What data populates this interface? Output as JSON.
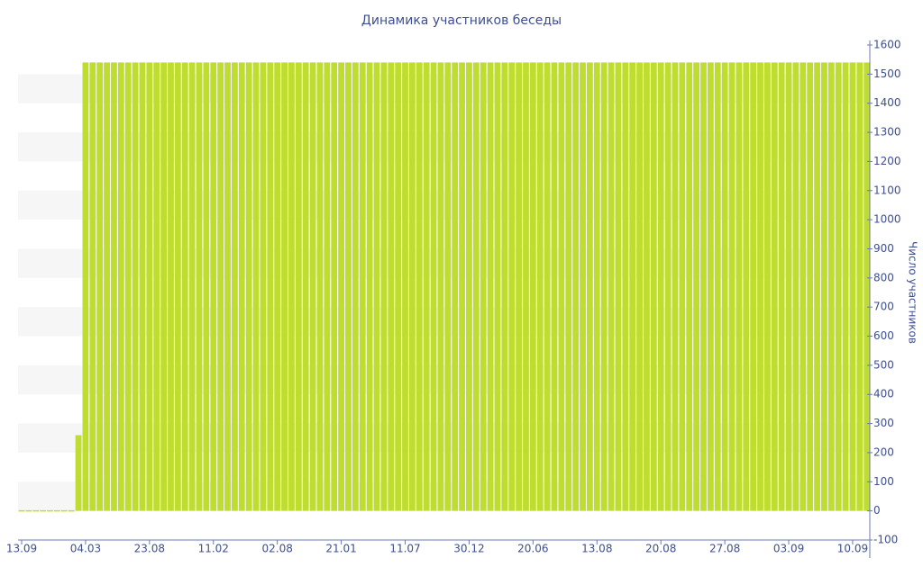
{
  "chart_data": {
    "type": "bar",
    "title": "Динамика участников беседы",
    "y_label": "Число участников",
    "color": "#bedd2f",
    "grid": true,
    "ylim": [
      -100,
      1600
    ],
    "yticks": [
      -100,
      0,
      100,
      200,
      300,
      400,
      500,
      600,
      700,
      800,
      900,
      1000,
      1100,
      1200,
      1300,
      1400,
      1500,
      1600
    ],
    "categories": [
      "13.09",
      null,
      null,
      null,
      null,
      null,
      null,
      null,
      null,
      "04.03",
      null,
      null,
      null,
      null,
      null,
      null,
      null,
      null,
      "23.08",
      null,
      null,
      null,
      null,
      null,
      null,
      null,
      null,
      "11.02",
      null,
      null,
      null,
      null,
      null,
      null,
      null,
      null,
      "02.08",
      null,
      null,
      null,
      null,
      null,
      null,
      null,
      null,
      "21.01",
      null,
      null,
      null,
      null,
      null,
      null,
      null,
      null,
      "11.07",
      null,
      null,
      null,
      null,
      null,
      null,
      null,
      null,
      "30.12",
      null,
      null,
      null,
      null,
      null,
      null,
      null,
      null,
      "20.06",
      null,
      null,
      null,
      null,
      null,
      null,
      null,
      null,
      "13.08",
      null,
      null,
      null,
      null,
      null,
      null,
      null,
      null,
      "20.08",
      null,
      null,
      null,
      null,
      null,
      null,
      null,
      null,
      "27.08",
      null,
      null,
      null,
      null,
      null,
      null,
      null,
      null,
      "03.09",
      null,
      null,
      null,
      null,
      null,
      null,
      null,
      null,
      "10.09",
      null,
      null
    ],
    "values": [
      0,
      0,
      0,
      0,
      0,
      0,
      0,
      0,
      260,
      1540,
      1540,
      1540,
      1540,
      1540,
      1540,
      1540,
      1540,
      1540,
      1540,
      1540,
      1540,
      1540,
      1540,
      1540,
      1540,
      1540,
      1540,
      1540,
      1540,
      1540,
      1540,
      1540,
      1540,
      1540,
      1540,
      1540,
      1540,
      1540,
      1540,
      1540,
      1540,
      1540,
      1540,
      1540,
      1540,
      1540,
      1540,
      1540,
      1540,
      1540,
      1540,
      1540,
      1540,
      1540,
      1540,
      1540,
      1540,
      1540,
      1540,
      1540,
      1540,
      1540,
      1540,
      1540,
      1540,
      1540,
      1540,
      1540,
      1540,
      1540,
      1540,
      1540,
      1540,
      1540,
      1540,
      1540,
      1540,
      1540,
      1540,
      1540,
      1540,
      1540,
      1540,
      1540,
      1540,
      1540,
      1540,
      1540,
      1540,
      1540,
      1540,
      1540,
      1540,
      1540,
      1540,
      1540,
      1540,
      1540,
      1540,
      1540,
      1540,
      1540,
      1540,
      1540,
      1540,
      1540,
      1540,
      1540,
      1540,
      1540,
      1540,
      1540,
      1540,
      1540,
      1540,
      1540,
      1540,
      1540,
      1540,
      1540
    ]
  }
}
